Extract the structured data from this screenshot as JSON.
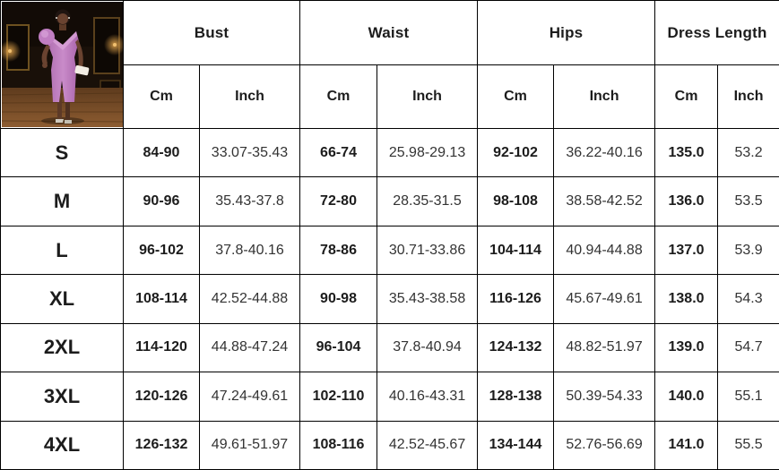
{
  "product_image": {
    "alt": "Model wearing purple off-shoulder slit dress in dark room with wooden floor",
    "colors": {
      "dress": "#c07ec2",
      "dress_highlight": "#d9a3d8",
      "skin": "#6a4330",
      "hair": "#201511",
      "wall": "#191009",
      "frame_gold": "#7a5a24",
      "floor": "#7a4e27",
      "clutch": "#f2ede4"
    }
  },
  "table": {
    "border_color": "#000000",
    "background": "#ffffff",
    "column_groups": [
      {
        "label": "Bust",
        "sub": [
          "Cm",
          "Inch"
        ]
      },
      {
        "label": "Waist",
        "sub": [
          "Cm",
          "Inch"
        ]
      },
      {
        "label": "Hips",
        "sub": [
          "Cm",
          "Inch"
        ]
      },
      {
        "label": "Dress Length",
        "sub": [
          "Cm",
          "Inch"
        ]
      }
    ],
    "rows": [
      {
        "size": "S",
        "bust_cm": "84-90",
        "bust_inch": "33.07-35.43",
        "waist_cm": "66-74",
        "waist_inch": "25.98-29.13",
        "hips_cm": "92-102",
        "hips_inch": "36.22-40.16",
        "length_cm": "135.0",
        "length_inch": "53.2"
      },
      {
        "size": "M",
        "bust_cm": "90-96",
        "bust_inch": "35.43-37.8",
        "waist_cm": "72-80",
        "waist_inch": "28.35-31.5",
        "hips_cm": "98-108",
        "hips_inch": "38.58-42.52",
        "length_cm": "136.0",
        "length_inch": "53.5"
      },
      {
        "size": "L",
        "bust_cm": "96-102",
        "bust_inch": "37.8-40.16",
        "waist_cm": "78-86",
        "waist_inch": "30.71-33.86",
        "hips_cm": "104-114",
        "hips_inch": "40.94-44.88",
        "length_cm": "137.0",
        "length_inch": "53.9"
      },
      {
        "size": "XL",
        "bust_cm": "108-114",
        "bust_inch": "42.52-44.88",
        "waist_cm": "90-98",
        "waist_inch": "35.43-38.58",
        "hips_cm": "116-126",
        "hips_inch": "45.67-49.61",
        "length_cm": "138.0",
        "length_inch": "54.3"
      },
      {
        "size": "2XL",
        "bust_cm": "114-120",
        "bust_inch": "44.88-47.24",
        "waist_cm": "96-104",
        "waist_inch": "37.8-40.94",
        "hips_cm": "124-132",
        "hips_inch": "48.82-51.97",
        "length_cm": "139.0",
        "length_inch": "54.7"
      },
      {
        "size": "3XL",
        "bust_cm": "120-126",
        "bust_inch": "47.24-49.61",
        "waist_cm": "102-110",
        "waist_inch": "40.16-43.31",
        "hips_cm": "128-138",
        "hips_inch": "50.39-54.33",
        "length_cm": "140.0",
        "length_inch": "55.1"
      },
      {
        "size": "4XL",
        "bust_cm": "126-132",
        "bust_inch": "49.61-51.97",
        "waist_cm": "108-116",
        "waist_inch": "42.52-45.67",
        "hips_cm": "134-144",
        "hips_inch": "52.76-56.69",
        "length_cm": "141.0",
        "length_inch": "55.5"
      }
    ]
  }
}
